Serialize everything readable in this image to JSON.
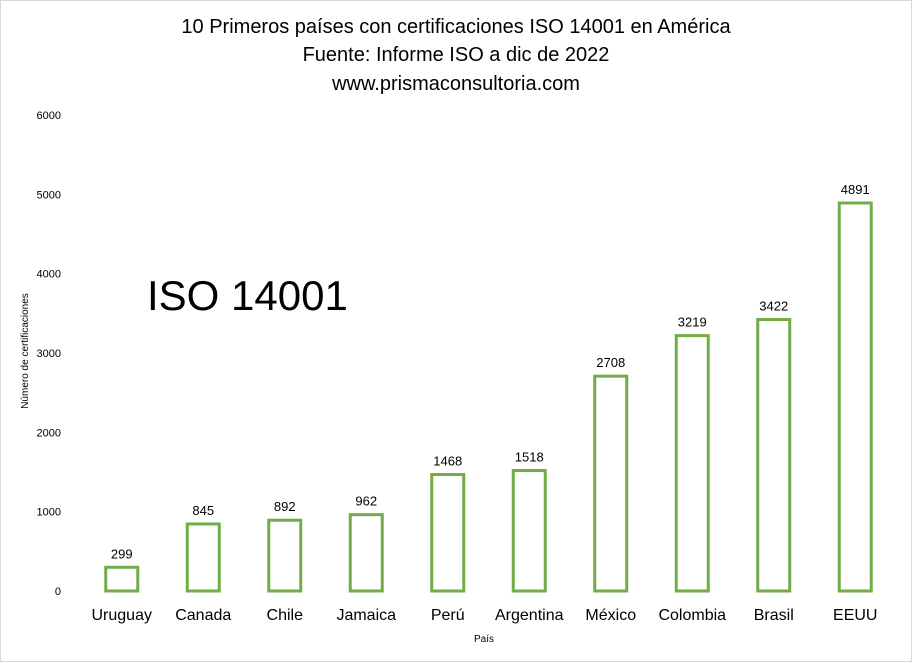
{
  "chart_data": {
    "type": "bar",
    "title_lines": [
      "10 Primeros países con certificaciones ISO 14001 en América",
      "Fuente: Informe ISO a dic de 2022",
      "www.prismaconsultoria.com"
    ],
    "annotation": "ISO 14001",
    "xlabel": "País",
    "ylabel": "Número de certificaciones",
    "categories": [
      "Uruguay",
      "Canada",
      "Chile",
      "Jamaica",
      "Perú",
      "Argentina",
      "México",
      "Colombia",
      "Brasil",
      "EEUU"
    ],
    "values": [
      299,
      845,
      892,
      962,
      1468,
      1518,
      2708,
      3219,
      3422,
      4891
    ],
    "ylim": [
      0,
      6000
    ],
    "yticks": [
      0,
      1000,
      2000,
      3000,
      4000,
      5000,
      6000
    ],
    "grid": false,
    "legend": "none",
    "bar_fill": "#ffffff",
    "bar_outline": "#70ad47"
  }
}
